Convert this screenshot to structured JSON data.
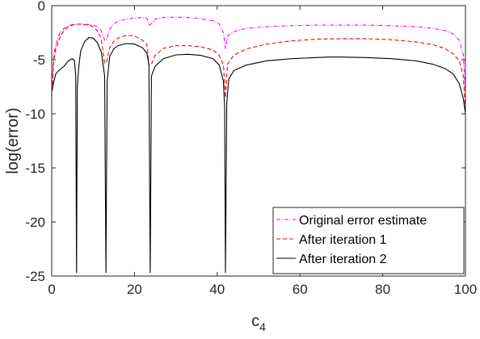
{
  "chart_data": {
    "type": "line",
    "xlabel": "c",
    "xlabel_sub": "4",
    "ylabel": "log(error)",
    "xlim": [
      0,
      100
    ],
    "ylim": [
      -25,
      0
    ],
    "xticks": [
      0,
      20,
      40,
      60,
      80,
      100
    ],
    "yticks": [
      0,
      -5,
      -10,
      -15,
      -20,
      -25
    ],
    "xtick_labels": [
      "0",
      "20",
      "40",
      "60",
      "80",
      "100"
    ],
    "ytick_labels": [
      "0",
      "-5",
      "-10",
      "-15",
      "-20",
      "-25"
    ],
    "grid": false,
    "legend_position": "bottom-right",
    "series": [
      {
        "name": "Original error estimate",
        "color": "#ff00ff",
        "style": "dash-dot",
        "x": [
          0,
          0.5,
          1,
          2,
          3,
          4,
          5,
          6,
          7,
          8,
          9,
          10,
          11,
          12,
          12.8,
          13.2,
          14,
          15,
          16,
          18,
          20,
          22,
          23,
          23.5,
          24,
          25,
          27,
          30,
          33,
          36,
          39,
          40.5,
          41.5,
          42,
          42.5,
          44,
          47,
          52,
          58,
          64,
          70,
          76,
          82,
          88,
          92,
          95,
          97,
          98.5,
          99.5,
          100
        ],
        "y": [
          -8,
          -4.5,
          -3.6,
          -2.5,
          -2.1,
          -1.85,
          -1.75,
          -1.7,
          -1.7,
          -1.7,
          -1.75,
          -1.8,
          -1.95,
          -2.3,
          -3.2,
          -3.2,
          -2.2,
          -1.7,
          -1.45,
          -1.25,
          -1.15,
          -1.1,
          -1.15,
          -1.8,
          -1.7,
          -1.25,
          -1.1,
          -1.05,
          -1.1,
          -1.2,
          -1.4,
          -1.7,
          -2.5,
          -4,
          -2.8,
          -2.4,
          -2.1,
          -1.95,
          -1.85,
          -1.8,
          -1.8,
          -1.8,
          -1.85,
          -1.95,
          -2.1,
          -2.3,
          -2.6,
          -3.2,
          -4.5,
          -8
        ]
      },
      {
        "name": "After iteration 1",
        "color": "#ff0000",
        "style": "dashed",
        "x": [
          0,
          0.5,
          1,
          2,
          3,
          4,
          5,
          6,
          7,
          8,
          9,
          10,
          11,
          12,
          12.8,
          13.2,
          14,
          15,
          16,
          18,
          20,
          22,
          23,
          23.5,
          24,
          25,
          27,
          30,
          33,
          36,
          39,
          40.5,
          41.5,
          42,
          42.5,
          44,
          47,
          52,
          58,
          64,
          70,
          76,
          82,
          88,
          92,
          95,
          97,
          98.5,
          99.5,
          100
        ],
        "y": [
          -8.5,
          -5,
          -4,
          -2.9,
          -2.3,
          -1.95,
          -1.8,
          -1.72,
          -1.72,
          -1.75,
          -1.8,
          -1.95,
          -2.3,
          -3.1,
          -5.3,
          -5.3,
          -3.9,
          -3.3,
          -3.0,
          -2.75,
          -2.8,
          -3.2,
          -3.6,
          -5.5,
          -5.5,
          -4.6,
          -3.95,
          -3.7,
          -3.7,
          -3.8,
          -4.1,
          -4.6,
          -5.5,
          -8.5,
          -5.4,
          -4.6,
          -4,
          -3.55,
          -3.25,
          -3.1,
          -3.05,
          -3.05,
          -3.15,
          -3.35,
          -3.6,
          -3.95,
          -4.45,
          -5.1,
          -6.5,
          -9.8
        ]
      },
      {
        "name": "After iteration 2",
        "color": "#000000",
        "style": "solid",
        "x": [
          0,
          0.5,
          1,
          2,
          3,
          4,
          5,
          5.5,
          5.8,
          6.0,
          6.2,
          6.5,
          7,
          8,
          9,
          10,
          11,
          12,
          12.8,
          13.1,
          13.4,
          14,
          15,
          16,
          18,
          20,
          22,
          23,
          23.5,
          23.8,
          24.1,
          25,
          27,
          30,
          33,
          36,
          39,
          40.5,
          41.5,
          41.8,
          42.0,
          42.3,
          42.8,
          44,
          47,
          52,
          58,
          64,
          67,
          70,
          76,
          82,
          88,
          92,
          95,
          97,
          98.5,
          99.5,
          100
        ],
        "y": [
          -8,
          -7,
          -6.3,
          -5.9,
          -5.6,
          -5.1,
          -4.9,
          -5.1,
          -6.5,
          -24.7,
          -7.5,
          -5.8,
          -4.2,
          -3.3,
          -2.95,
          -3.0,
          -3.4,
          -4.3,
          -6.5,
          -24.7,
          -7,
          -4.7,
          -4.0,
          -3.7,
          -3.5,
          -3.55,
          -3.9,
          -4.4,
          -5.5,
          -24.7,
          -6.5,
          -5.6,
          -4.9,
          -4.55,
          -4.5,
          -4.6,
          -4.9,
          -5.5,
          -7,
          -9.5,
          -24.7,
          -9,
          -6.8,
          -6,
          -5.5,
          -5.1,
          -4.9,
          -4.8,
          -4.75,
          -4.75,
          -4.8,
          -4.9,
          -5.1,
          -5.4,
          -5.8,
          -6.3,
          -7.2,
          -8.6,
          -10
        ]
      }
    ]
  }
}
